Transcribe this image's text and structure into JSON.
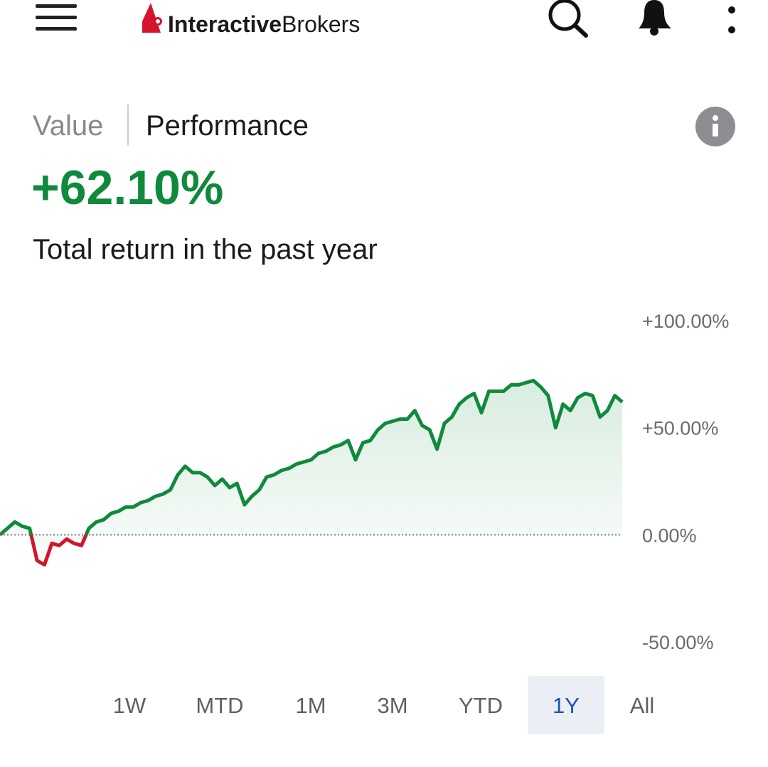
{
  "header": {
    "logo_bold": "Interactive",
    "logo_light": "Brokers"
  },
  "tabs": [
    "Value",
    "Performance"
  ],
  "summary": {
    "value": "+62.10%",
    "caption": "Total return in the past year"
  },
  "ranges": [
    "1W",
    "MTD",
    "1M",
    "3M",
    "YTD",
    "1Y",
    "All"
  ],
  "selected_range_index": 5,
  "chart_data": {
    "type": "line",
    "series": [
      {
        "color": "#0f8a3c",
        "negative_color": "#d3142a",
        "values": [
          0,
          3,
          6,
          4,
          3,
          -12,
          -14,
          -4,
          -5,
          -2,
          -4,
          -5,
          3,
          6,
          7,
          10,
          11,
          13,
          13,
          15,
          16,
          18,
          19,
          21,
          28,
          32,
          29,
          29,
          27,
          23,
          26,
          22,
          24,
          14,
          18,
          21,
          27,
          28,
          30,
          31,
          33,
          34,
          35,
          38,
          39,
          41,
          42,
          44,
          35,
          43,
          44,
          49,
          52,
          53,
          54,
          54,
          58,
          51,
          49,
          40,
          52,
          55,
          61,
          64,
          66,
          57,
          67,
          67,
          67,
          70,
          70,
          71,
          72,
          69,
          65,
          50,
          61,
          58,
          64,
          66,
          65,
          55,
          58,
          65,
          62
        ]
      }
    ],
    "ylim": [
      -50,
      100
    ],
    "yticks": [
      {
        "value": 100,
        "label": "+100.00%"
      },
      {
        "value": 50,
        "label": "+50.00%"
      },
      {
        "value": 0,
        "label": "0.00%"
      },
      {
        "value": -50,
        "label": "-50.00%"
      }
    ],
    "zero_line": true
  }
}
